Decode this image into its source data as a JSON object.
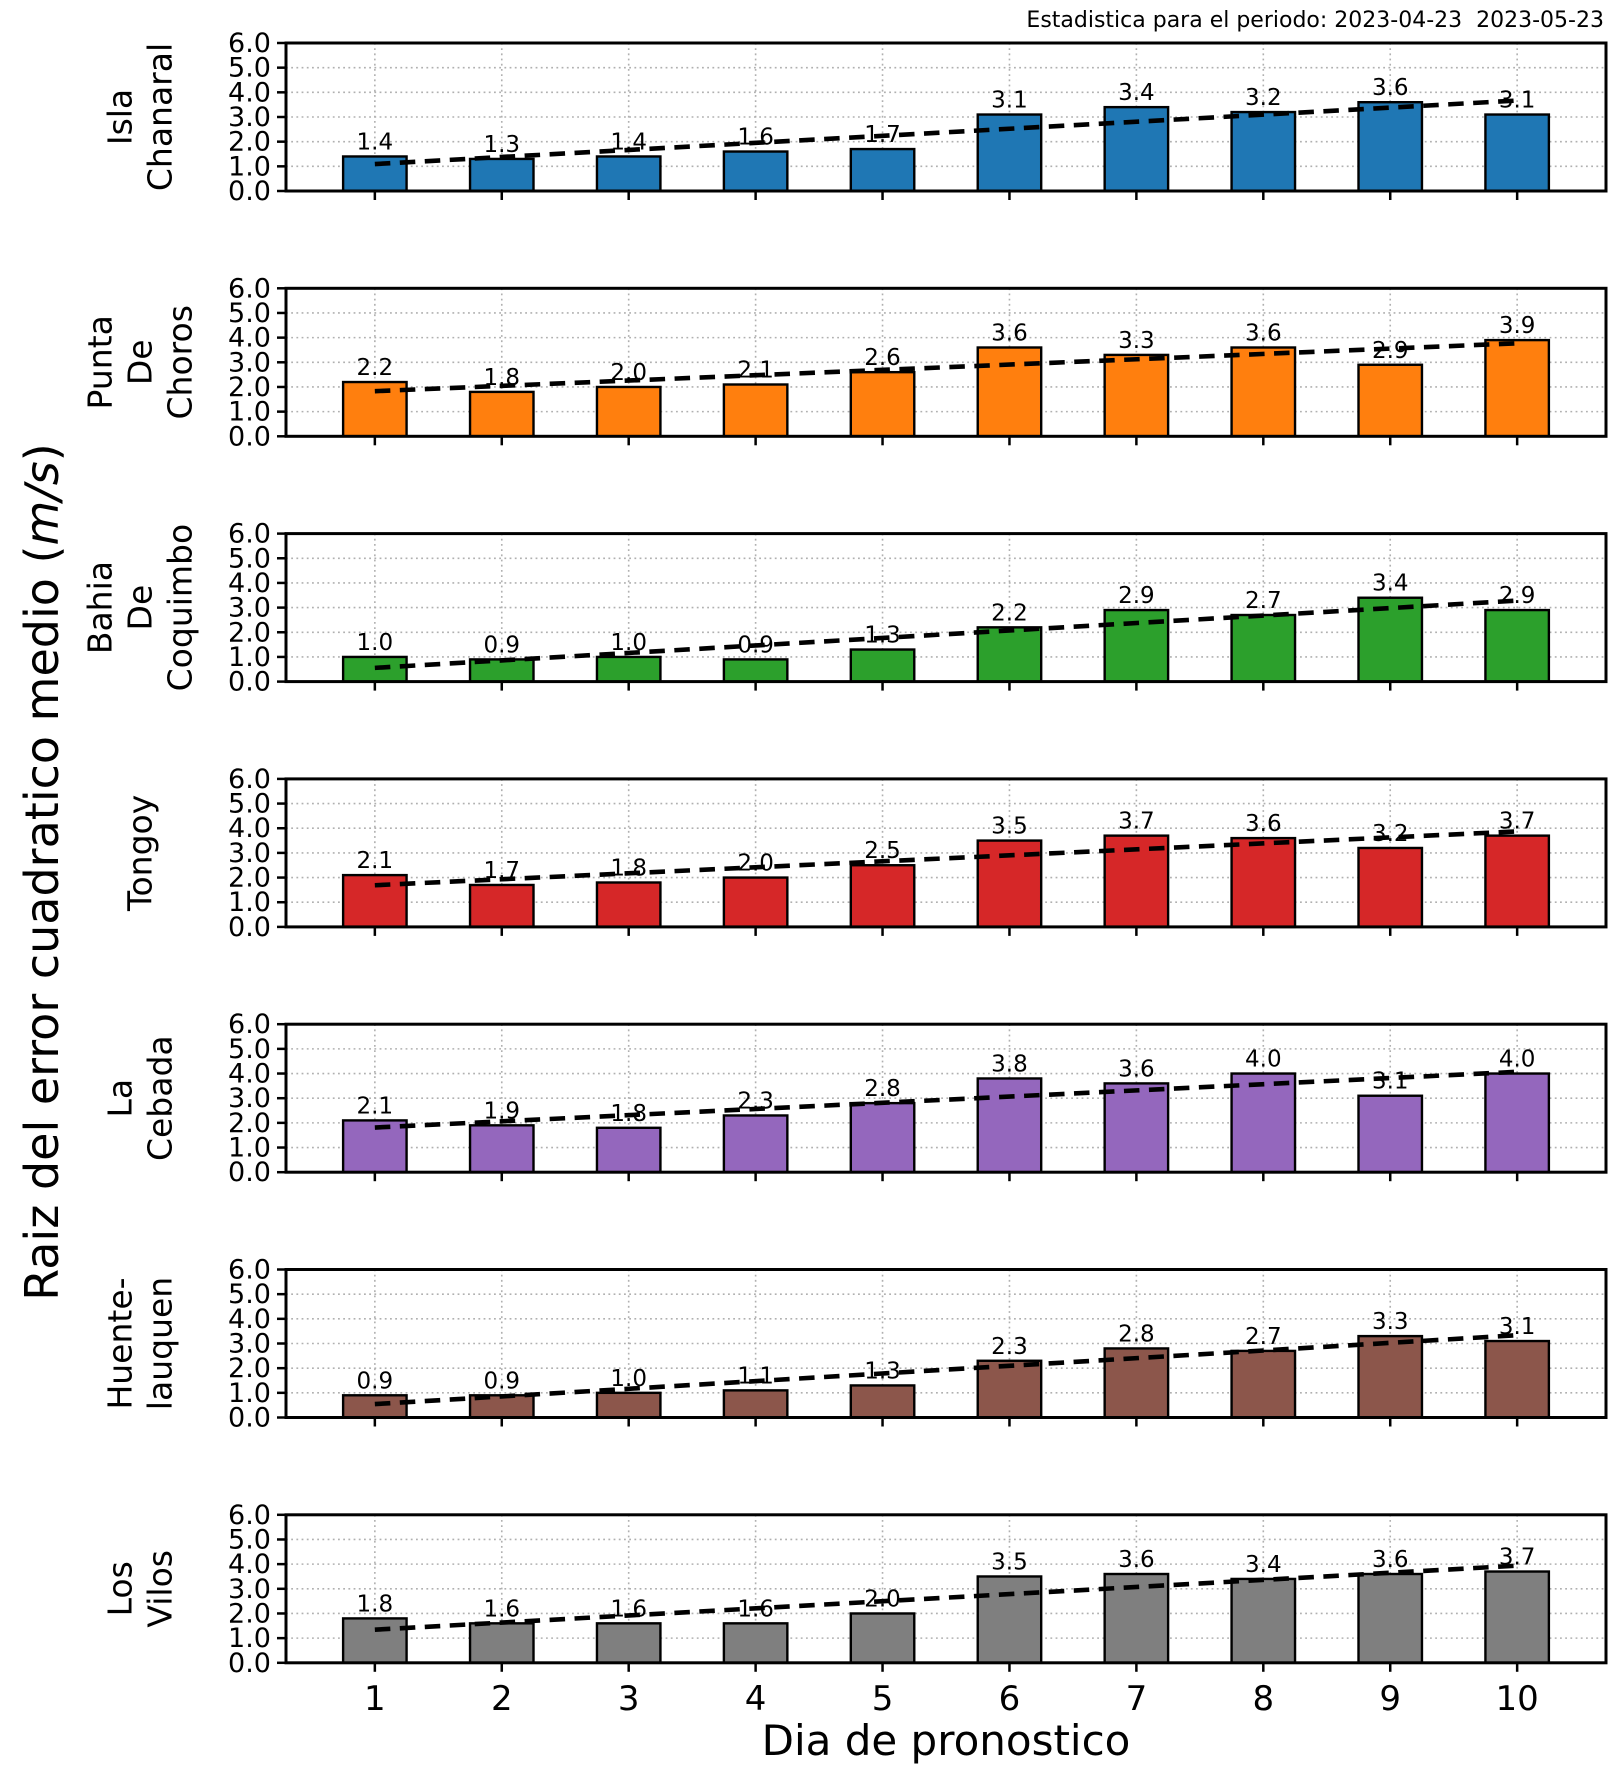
{
  "title": "Estadistica para el periodo: 2023-04-23  2023-05-23",
  "labels": {
    "xlabel": "Dia de pronostico",
    "ylabel_main": "Raiz del error cuadratico medio ",
    "ylabel_open": "(",
    "ylabel_unit": "m/s",
    "ylabel_close": ")"
  },
  "chart_data": {
    "type": "bar",
    "title": "Estadistica para el periodo: 2023-04-23  2023-05-23",
    "xlabel": "Dia de pronostico",
    "ylabel": "Raiz del error cuadratico medio (m/s)",
    "x": [
      1,
      2,
      3,
      4,
      5,
      6,
      7,
      8,
      9,
      10
    ],
    "ylim": [
      0,
      6
    ],
    "yticks": [
      0.0,
      1.0,
      2.0,
      3.0,
      4.0,
      5.0,
      6.0
    ],
    "grid": "dotted, both axes",
    "bar_edge_color": "#000000",
    "trend_line": "black dashed linear least-squares fit per subplot, drawn from x=1 to x=10",
    "value_labels": "each bar labeled with its value, one decimal",
    "series": [
      {
        "name": "Isla Chanaral",
        "label_lines": [
          "Isla",
          "Chanaral"
        ],
        "color": "#1f77b4",
        "values": [
          1.4,
          1.3,
          1.4,
          1.6,
          1.7,
          3.1,
          3.4,
          3.2,
          3.6,
          3.1
        ]
      },
      {
        "name": "Punta De Choros",
        "label_lines": [
          "Punta",
          "De",
          "Choros"
        ],
        "color": "#ff7f0e",
        "values": [
          2.2,
          1.8,
          2.0,
          2.1,
          2.6,
          3.6,
          3.3,
          3.6,
          2.9,
          3.9
        ]
      },
      {
        "name": "Bahia De Coquimbo",
        "label_lines": [
          "Bahia",
          "De",
          "Coquimbo"
        ],
        "color": "#2ca02c",
        "values": [
          1.0,
          0.9,
          1.0,
          0.9,
          1.3,
          2.2,
          2.9,
          2.7,
          3.4,
          2.9
        ]
      },
      {
        "name": "Tongoy",
        "label_lines": [
          "Tongoy"
        ],
        "color": "#d62728",
        "values": [
          2.1,
          1.7,
          1.8,
          2.0,
          2.5,
          3.5,
          3.7,
          3.6,
          3.2,
          3.7
        ]
      },
      {
        "name": "La Cebada",
        "label_lines": [
          "La",
          "Cebada"
        ],
        "color": "#9467bd",
        "values": [
          2.1,
          1.9,
          1.8,
          2.3,
          2.8,
          3.8,
          3.6,
          4.0,
          3.1,
          4.0
        ]
      },
      {
        "name": "Huente-lauquen",
        "label_lines": [
          "Huente-",
          "lauquen"
        ],
        "color": "#8c564b",
        "values": [
          0.9,
          0.9,
          1.0,
          1.1,
          1.3,
          2.3,
          2.8,
          2.7,
          3.3,
          3.1
        ]
      },
      {
        "name": "Los Vilos",
        "label_lines": [
          "Los",
          "Vilos"
        ],
        "color": "#7f7f7f",
        "values": [
          1.8,
          1.6,
          1.6,
          1.6,
          2.0,
          3.5,
          3.6,
          3.4,
          3.6,
          3.7
        ]
      }
    ]
  }
}
